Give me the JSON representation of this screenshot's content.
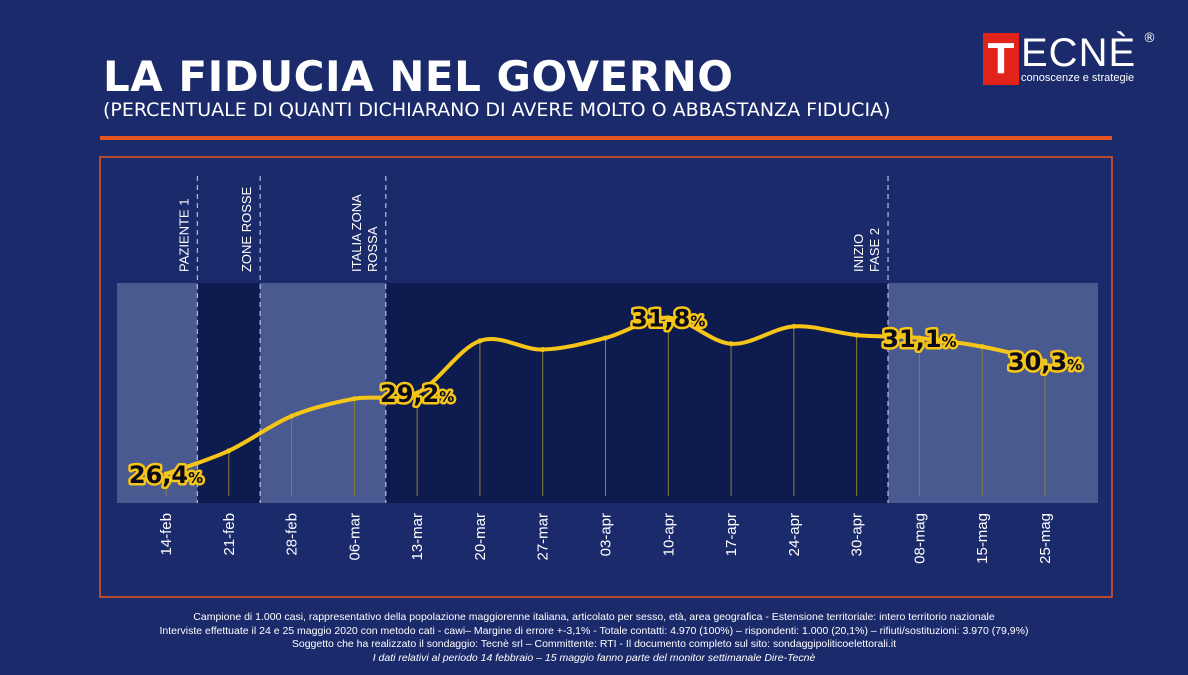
{
  "header": {
    "title": "LA FIDUCIA NEL GOVERNO",
    "subtitle": "(PERCENTUALE DI QUANTI DICHIARANO DI AVERE MOLTO O ABBASTANZA FIDUCIA)"
  },
  "logo": {
    "letter": "T",
    "word": "ECNÈ",
    "registered": "®",
    "tagline": "conoscenze e strategie"
  },
  "colors": {
    "background": "#1b2a6b",
    "accent_rule": "#e8541f",
    "line": "#f5c518",
    "label_text": "#0a0a1a",
    "panel_dark": "#0d1a4d",
    "panel_light": "#4f5f95",
    "event_line": "#aab4dd",
    "logo_red": "#e2231a"
  },
  "chart_data": {
    "type": "line",
    "categories": [
      "14-feb",
      "21-feb",
      "28-feb",
      "06-mar",
      "13-mar",
      "20-mar",
      "27-mar",
      "03-apr",
      "10-apr",
      "17-apr",
      "24-apr",
      "30-apr",
      "08-mag",
      "15-mag",
      "25-mag"
    ],
    "values": [
      26.4,
      27.2,
      28.4,
      29.0,
      29.2,
      31.0,
      30.7,
      31.1,
      31.8,
      30.9,
      31.5,
      31.2,
      31.1,
      30.8,
      30.3
    ],
    "data_labels": [
      {
        "index": 0,
        "text": "26,4",
        "unit": "%"
      },
      {
        "index": 4,
        "text": "29,2",
        "unit": "%"
      },
      {
        "index": 8,
        "text": "31,8",
        "unit": "%"
      },
      {
        "index": 12,
        "text": "31,1",
        "unit": "%"
      },
      {
        "index": 14,
        "text": "30,3",
        "unit": "%"
      }
    ],
    "events": [
      {
        "lines": [
          "PAZIENTE 1"
        ],
        "after_index": 0
      },
      {
        "lines": [
          "ZONE ROSSE"
        ],
        "after_index": 1
      },
      {
        "lines": [
          "ITALIA ZONA",
          "ROSSA"
        ],
        "after_index": 3
      },
      {
        "lines": [
          "INIZIO",
          "FASE 2"
        ],
        "after_index": 11
      }
    ],
    "ylim": [
      25.5,
      33.0
    ],
    "xlabel": "",
    "ylabel": "",
    "grid": false,
    "legend": "none"
  },
  "footer": {
    "line1": "Campione di 1.000 casi, rappresentativo della popolazione maggiorenne italiana, articolato per sesso, età, area geografica - Estensione territoriale: intero territorio nazionale",
    "line2": "Interviste effettuate il 24 e 25 maggio 2020 con metodo cati - cawi– Margine di errore +-3,1% - Totale contatti: 4.970 (100%) – rispondenti: 1.000 (20,1%) – rifiuti/sostituzioni: 3.970 (79,9%)",
    "line3": "Soggetto che ha realizzato il sondaggio: Tecnè srl – Committente: RTI - Il documento completo sul sito: sondaggipoliticoelettorali.it",
    "line4": "I dati relativi al periodo 14 febbraio – 15 maggio fanno parte del monitor settimanale Dire-Tecnè"
  }
}
